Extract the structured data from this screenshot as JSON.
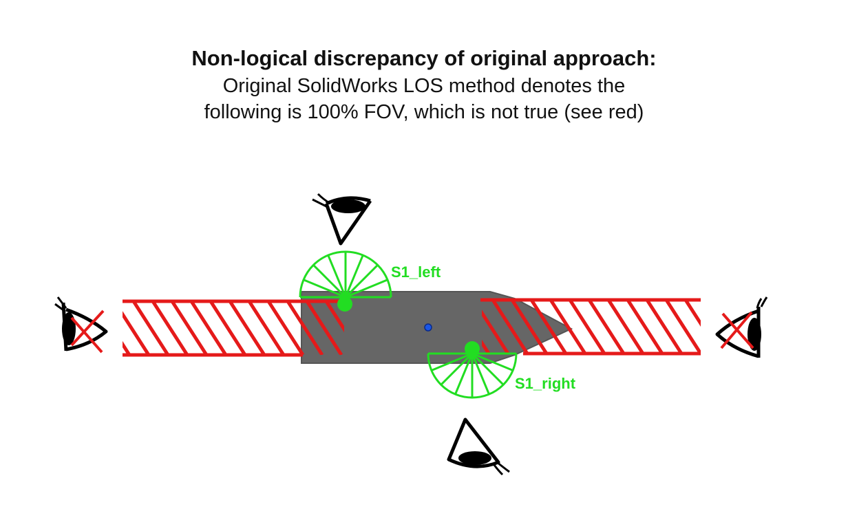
{
  "caption": {
    "heading": "Non-logical discrepancy of original approach:",
    "line1": "Original SolidWorks LOS method denotes the",
    "line2": "following is 100% FOV, which is not true (see red)"
  },
  "diagram": {
    "sensor_left_label": "S1_left",
    "sensor_right_label": "S1_right",
    "colors": {
      "body": "#666666",
      "body_edge": "#555555",
      "sensor": "#22dd22",
      "hatch": "#e51a1a",
      "center_marker": "#1a56e6",
      "eye": "#000000"
    },
    "icons": [
      "eye-top-icon",
      "eye-bottom-icon",
      "eye-left-crossed-icon",
      "eye-right-crossed-icon"
    ]
  }
}
